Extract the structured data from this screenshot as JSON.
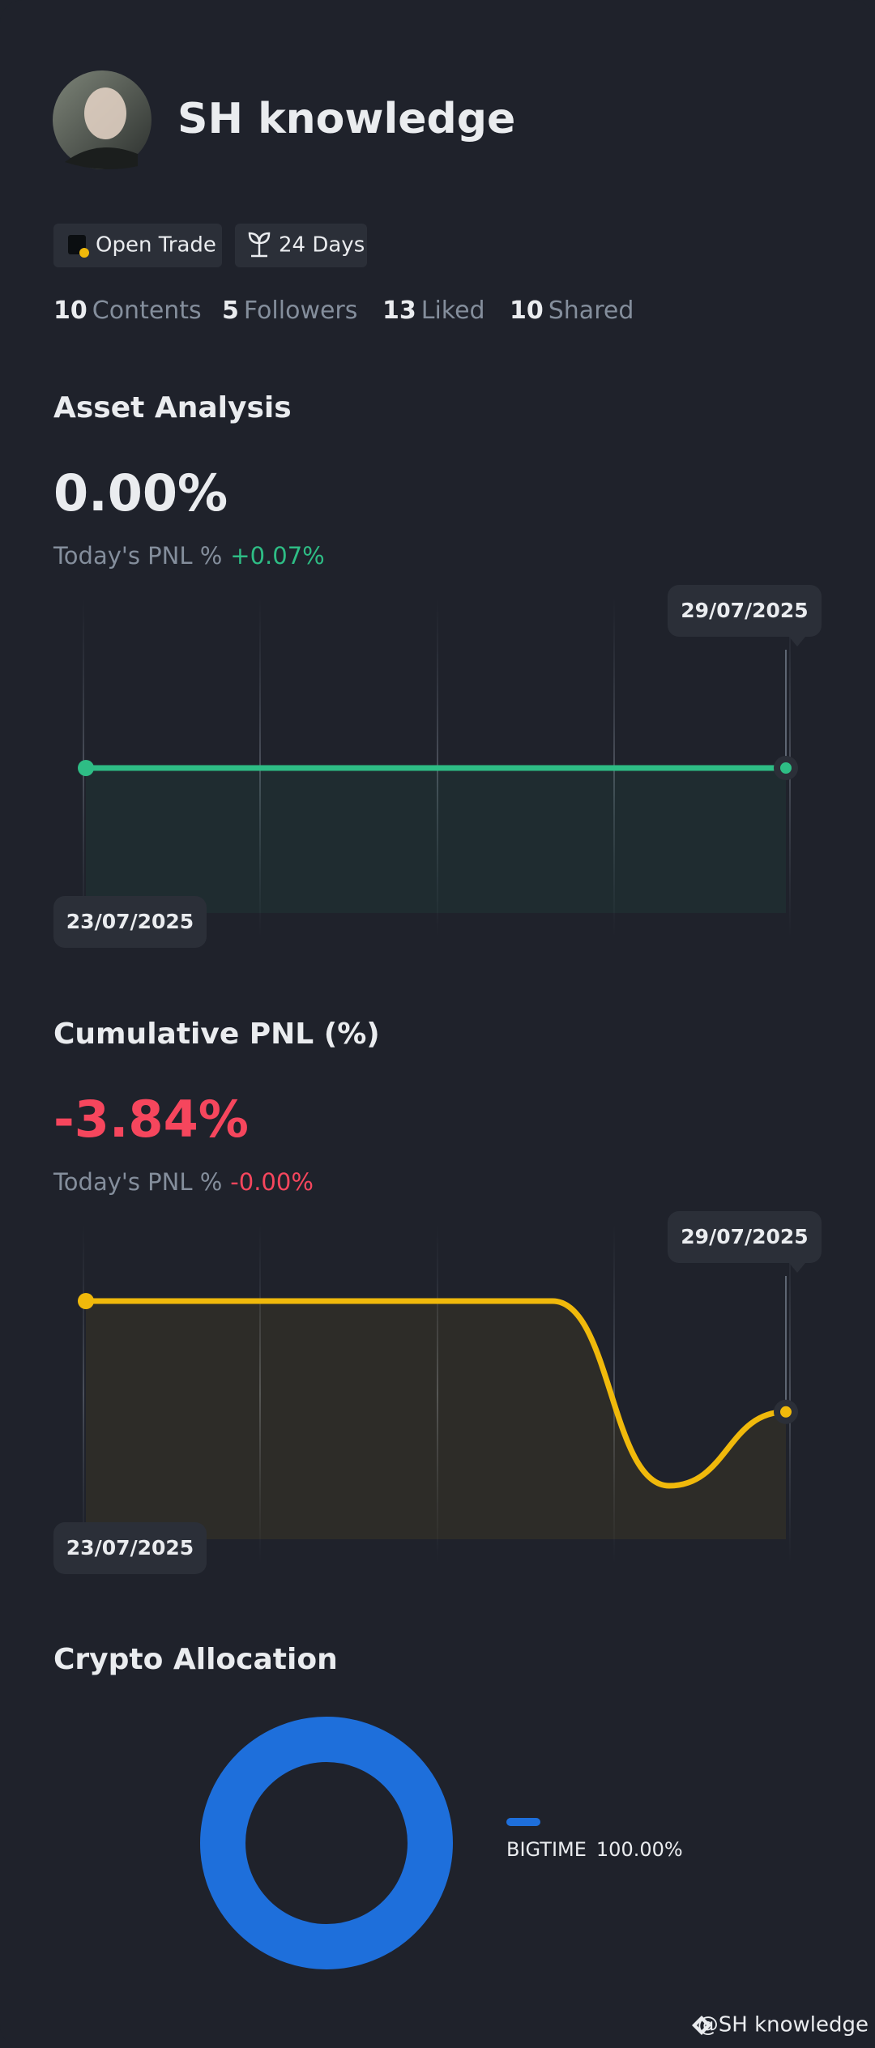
{
  "profile": {
    "name": "SH knowledge",
    "badges": [
      "Open Trade",
      "24 Days"
    ],
    "stats": [
      {
        "value": 10,
        "label": "Contents"
      },
      {
        "value": 5,
        "label": "Followers"
      },
      {
        "value": 13,
        "label": "Liked"
      },
      {
        "value": 10,
        "label": "Shared"
      }
    ]
  },
  "chart_data": [
    {
      "type": "line",
      "title": "Asset Analysis",
      "headline": "0.00%",
      "today_label": "Today's PNL %",
      "today_value": "+0.07%",
      "categories": [
        "23/07/2025",
        null,
        null,
        null,
        null,
        null,
        "29/07/2025"
      ],
      "series": [
        {
          "color": "#2ebd85",
          "values": [
            0,
            0,
            0,
            0,
            0,
            0,
            0
          ]
        }
      ]
    },
    {
      "type": "line",
      "title": "Cumulative PNL (%)",
      "headline": "-3.84%",
      "today_label": "Today's PNL %",
      "today_value": "-0.00%",
      "categories": [
        "23/07/2025",
        null,
        null,
        null,
        null,
        null,
        "29/07/2025"
      ],
      "series": [
        {
          "color": "#f0b90b",
          "values": [
            0,
            0,
            0,
            0,
            0,
            -6.4,
            -3.84
          ]
        }
      ]
    },
    {
      "type": "pie",
      "title": "Crypto Allocation",
      "categories": [
        "BIGTIME"
      ],
      "values": [
        100
      ],
      "value_labels": [
        "100.00%"
      ],
      "colors": [
        "#1e6fdb"
      ]
    }
  ],
  "watermark": "@SH knowledge"
}
